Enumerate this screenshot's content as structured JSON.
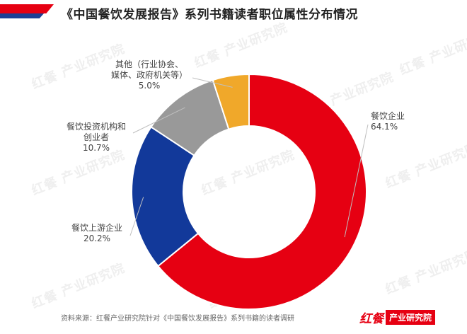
{
  "title": "《中国餐饮发展报告》系列书籍读者职位属性分布情况",
  "source": "资料来源：红餐产业研究院针对《中国餐饮发展报告》系列书籍的读者调研",
  "logo": {
    "mark": "红餐",
    "name": "产业研究院"
  },
  "watermark": "红餐 产业研究院",
  "colors": {
    "brand_red": "#e60012",
    "brand_blue": "#1c3f95"
  },
  "chart_data": {
    "type": "pie",
    "donut": true,
    "slices": [
      {
        "label_lines": [
          "餐饮企业",
          "64.1%"
        ],
        "value": 64.1,
        "color": "#e60012"
      },
      {
        "label_lines": [
          "餐饮上游企业",
          "20.2%"
        ],
        "value": 20.2,
        "color": "#12399a"
      },
      {
        "label_lines": [
          "餐饮投资机构和",
          "创业者",
          "10.7%"
        ],
        "value": 10.7,
        "color": "#999999"
      },
      {
        "label_lines": [
          "其他（行业协会、",
          "媒体、政府机关等）",
          "5.0%"
        ],
        "value": 5.0,
        "color": "#f0a82a"
      }
    ]
  }
}
